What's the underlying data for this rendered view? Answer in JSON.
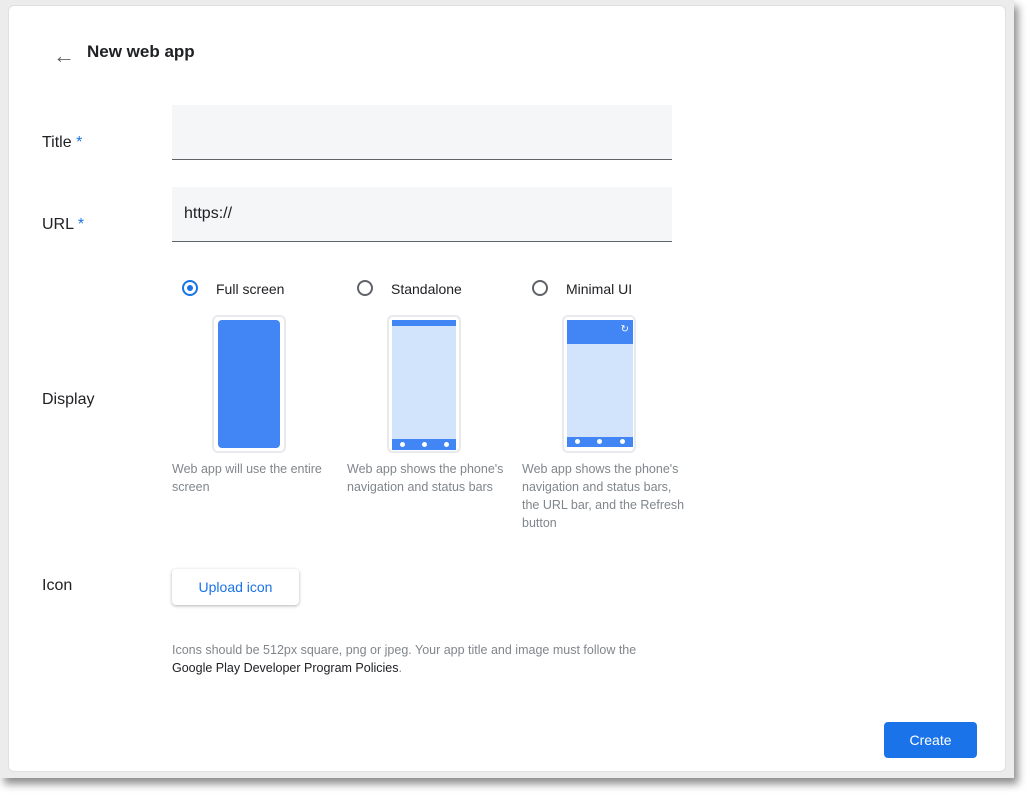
{
  "header": {
    "title": "New web app",
    "back_icon": "arrow-left-icon"
  },
  "form": {
    "title_label": "Title",
    "url_label": "URL",
    "required_mark": "*",
    "title_value": "",
    "url_value": "https://",
    "display_label": "Display",
    "display_options": [
      {
        "label": "Full screen",
        "selected": true,
        "description": "Web app will use the entire screen"
      },
      {
        "label": "Standalone",
        "selected": false,
        "description": "Web app shows the phone's navigation and status bars"
      },
      {
        "label": "Minimal UI",
        "selected": false,
        "description": "Web app shows the phone's navigation and status bars, the URL bar, and the Refresh button"
      }
    ],
    "icon_label": "Icon",
    "upload_label": "Upload icon",
    "icon_hint": "Icons should be 512px square, png or jpeg. Your app title and image must follow the",
    "policy_link": "Google Play Developer Program Policies",
    "policy_suffix": "."
  },
  "footer": {
    "create_label": "Create"
  },
  "colors": {
    "accent": "#1a73e8",
    "phone_blue": "#4285f4",
    "phone_light": "#d2e3fc"
  }
}
